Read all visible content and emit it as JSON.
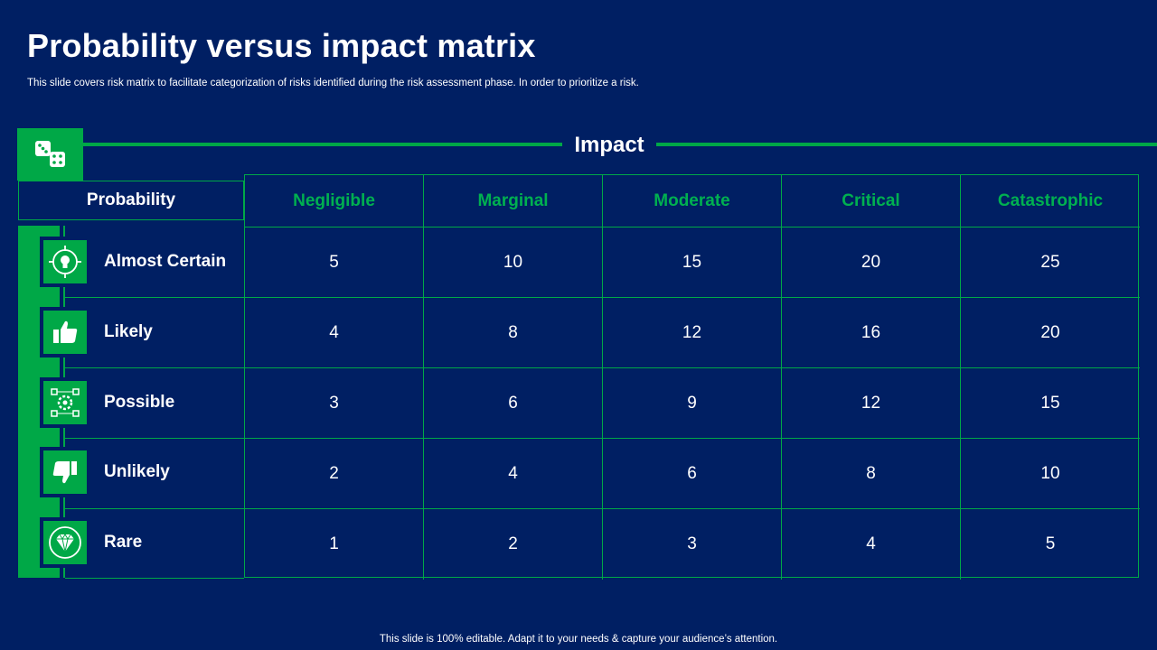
{
  "title": "Probability versus impact matrix",
  "subtitle": "This slide covers risk matrix to facilitate categorization of risks identified during the risk assessment phase. In order to prioritize a risk.",
  "footer": "This slide is 100% editable. Adapt it to your needs & capture your audience’s attention.",
  "impact_label": "Impact",
  "probability_label": "Probability",
  "impact_columns": [
    "Negligible",
    "Marginal",
    "Moderate",
    "Critical",
    "Catastrophic"
  ],
  "rows": [
    {
      "label": "Almost Certain",
      "icon": "target-bulb-icon",
      "values": [
        "5",
        "10",
        "15",
        "20",
        "25"
      ]
    },
    {
      "label": "Likely",
      "icon": "thumbs-up-icon",
      "values": [
        "4",
        "8",
        "12",
        "16",
        "20"
      ]
    },
    {
      "label": "Possible",
      "icon": "network-gear-icon",
      "values": [
        "3",
        "6",
        "9",
        "12",
        "15"
      ]
    },
    {
      "label": "Unlikely",
      "icon": "thumbs-down-icon",
      "values": [
        "2",
        "4",
        "6",
        "8",
        "10"
      ]
    },
    {
      "label": "Rare",
      "icon": "diamond-icon",
      "values": [
        "1",
        "2",
        "3",
        "4",
        "5"
      ]
    }
  ],
  "colors": {
    "background": "#001f63",
    "accent": "#00a847",
    "header_text": "#00b050"
  }
}
